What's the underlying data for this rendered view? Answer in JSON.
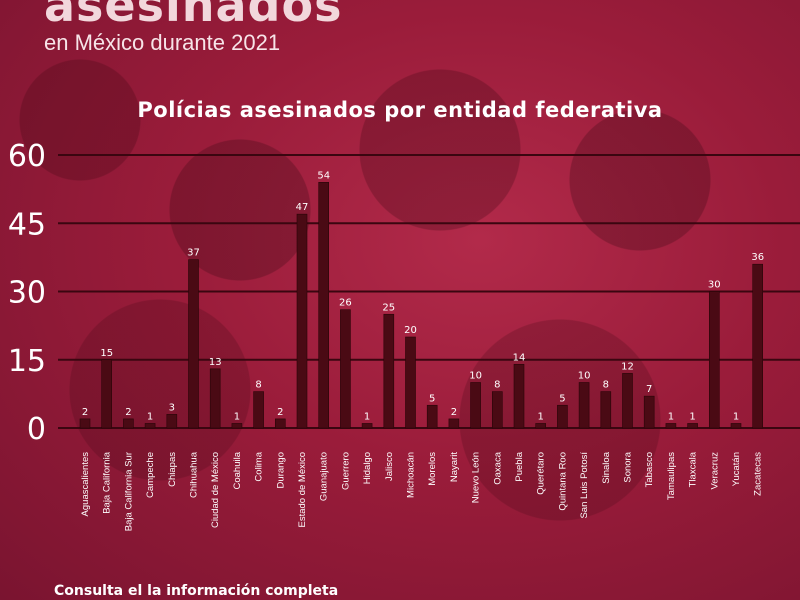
{
  "header": {
    "title": "asesinados",
    "subtitle": "en México durante 2021"
  },
  "footer": {
    "text": "Consulta el la información completa"
  },
  "colors": {
    "bar": "#4a0a14",
    "bar_edge": "#2a0408",
    "grid": "#3a0610",
    "text": "#ffffff"
  },
  "chart_data": {
    "type": "bar",
    "title": "Polícias asesinados por entidad federativa",
    "xlabel": "",
    "ylabel": "",
    "ylim": [
      0,
      60
    ],
    "yticks": [
      0,
      15,
      30,
      45,
      60
    ],
    "grid": true,
    "categories": [
      "Aguascalientes",
      "Baja California",
      "Baja California Sur",
      "Campeche",
      "Chiapas",
      "Chihuahua",
      "Ciudad de México",
      "Coahuila",
      "Colima",
      "Durango",
      "Estado de México",
      "Guanajuato",
      "Guerrero",
      "Hidalgo",
      "Jalisco",
      "Michoacán",
      "Morelos",
      "Nayarit",
      "Nuevo León",
      "Oaxaca",
      "Puebla",
      "Querétaro",
      "Quintana Roo",
      "San Luis Potosí",
      "Sinaloa",
      "Sonora",
      "Tabasco",
      "Tamaulipas",
      "Tlaxcala",
      "Veracruz",
      "Yucatán",
      "Zacatecas"
    ],
    "values": [
      2,
      15,
      2,
      1,
      3,
      37,
      13,
      1,
      8,
      2,
      47,
      54,
      26,
      1,
      25,
      20,
      5,
      2,
      10,
      8,
      14,
      1,
      5,
      10,
      8,
      12,
      7,
      1,
      1,
      30,
      1,
      36
    ]
  }
}
